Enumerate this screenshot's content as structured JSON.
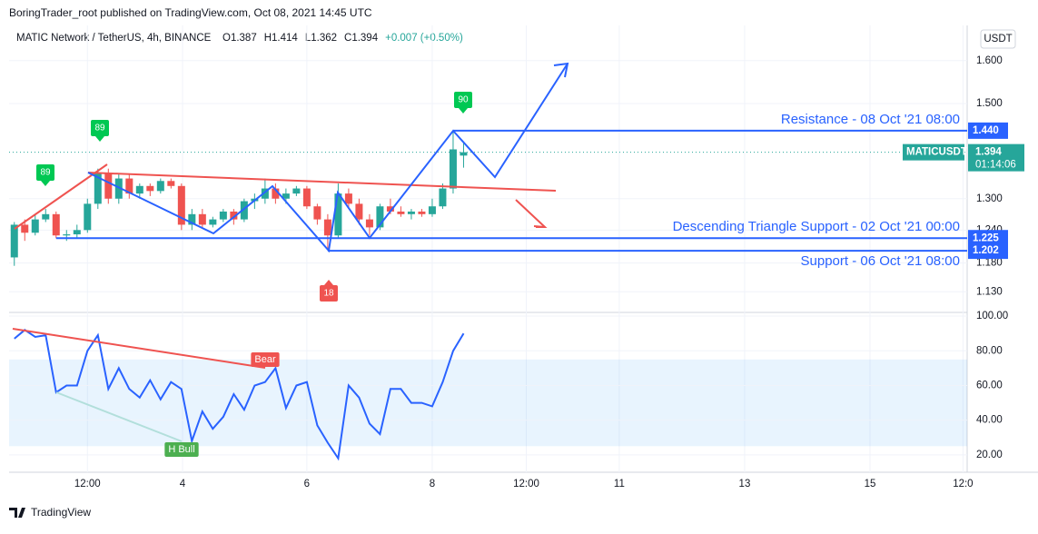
{
  "header": {
    "byline": "BoringTrader_root published on TradingView.com, Oct 08, 2021 14:45 UTC",
    "symbol": "MATIC Network / TetherUS, 4h, BINANCE",
    "ohlc": [
      "O1.387",
      "H1.414",
      "L1.362",
      "C1.394",
      "+0.007 (+0.50%)"
    ],
    "currency": "USDT",
    "ticker": "MATICUSDT",
    "last_price": "1.394",
    "countdown": "01:14:06"
  },
  "footer": {
    "brand": "TradingView"
  },
  "chart_data": [
    {
      "type": "candlestick",
      "log": true,
      "grid": true,
      "up_color": "#26a69a",
      "down_color": "#ef5350",
      "xlim": [
        -0.5,
        91.2
      ],
      "xticks": [
        {
          "value": 7,
          "label": "12:00"
        },
        {
          "value": 16.1,
          "label": "4"
        },
        {
          "value": 28,
          "label": "6"
        },
        {
          "value": 40,
          "label": "8"
        },
        {
          "value": 49,
          "label": "12:00"
        },
        {
          "value": 57.9,
          "label": "11"
        },
        {
          "value": 69.9,
          "label": "13"
        },
        {
          "value": 81.9,
          "label": "15"
        },
        {
          "value": 90.8,
          "label": "12:0"
        }
      ],
      "ylim": [
        1.097,
        1.687
      ],
      "yticks": [
        {
          "value": 1.6,
          "label": "1.600"
        },
        {
          "value": 1.5,
          "label": "1.500"
        },
        {
          "value": 1.3,
          "label": "1.300"
        },
        {
          "value": 1.24,
          "label": "1.240"
        },
        {
          "value": 1.18,
          "label": "1.180"
        },
        {
          "value": 1.13,
          "label": "1.130"
        }
      ],
      "open": [
        1.19,
        1.25,
        1.235,
        1.26,
        1.27,
        1.23,
        1.232,
        1.24,
        1.29,
        1.35,
        1.3,
        1.34,
        1.31,
        1.325,
        1.315,
        1.335,
        1.325,
        1.25,
        1.27,
        1.25,
        1.26,
        1.275,
        1.26,
        1.295,
        1.3,
        1.32,
        1.3,
        1.31,
        1.32,
        1.285,
        1.26,
        1.23,
        1.31,
        1.29,
        1.26,
        1.245,
        1.285,
        1.275,
        1.27,
        1.275,
        1.27,
        1.285,
        1.32,
        1.387
      ],
      "high": [
        1.255,
        1.26,
        1.27,
        1.28,
        1.275,
        1.24,
        1.25,
        1.3,
        1.36,
        1.36,
        1.35,
        1.35,
        1.33,
        1.33,
        1.34,
        1.34,
        1.33,
        1.28,
        1.28,
        1.265,
        1.28,
        1.28,
        1.3,
        1.31,
        1.34,
        1.33,
        1.32,
        1.325,
        1.325,
        1.29,
        1.27,
        1.33,
        1.32,
        1.3,
        1.27,
        1.29,
        1.3,
        1.285,
        1.28,
        1.28,
        1.3,
        1.33,
        1.44,
        1.414
      ],
      "low": [
        1.175,
        1.22,
        1.23,
        1.255,
        1.225,
        1.22,
        1.225,
        1.235,
        1.28,
        1.29,
        1.29,
        1.3,
        1.3,
        1.305,
        1.31,
        1.32,
        1.24,
        1.24,
        1.245,
        1.245,
        1.255,
        1.25,
        1.255,
        1.28,
        1.29,
        1.29,
        1.29,
        1.305,
        1.28,
        1.25,
        1.205,
        1.225,
        1.28,
        1.25,
        1.23,
        1.24,
        1.27,
        1.265,
        1.26,
        1.265,
        1.265,
        1.28,
        1.31,
        1.362
      ],
      "close": [
        1.25,
        1.235,
        1.26,
        1.27,
        1.23,
        1.232,
        1.24,
        1.29,
        1.35,
        1.3,
        1.34,
        1.31,
        1.325,
        1.315,
        1.335,
        1.325,
        1.25,
        1.27,
        1.25,
        1.26,
        1.275,
        1.26,
        1.295,
        1.3,
        1.32,
        1.3,
        1.31,
        1.32,
        1.285,
        1.26,
        1.23,
        1.31,
        1.29,
        1.26,
        1.245,
        1.285,
        1.275,
        1.27,
        1.275,
        1.27,
        1.285,
        1.32,
        1.4,
        1.394
      ],
      "price_lines": [
        {
          "value": 1.44,
          "label": "1.440",
          "text": "Resistance - 08 Oct '21 08:00",
          "start": 42
        },
        {
          "value": 1.225,
          "label": "1.225",
          "text": "Descending Triangle Support - 02 Oct '21 00:00",
          "start": 4
        },
        {
          "value": 1.202,
          "label": "1.202",
          "text": "Support - 06 Oct '21 08:00",
          "start": 30
        }
      ],
      "markers": [
        89,
        89,
        90,
        18
      ]
    },
    {
      "type": "line",
      "color": "#2962ff",
      "band": [
        25,
        75
      ],
      "values": [
        87,
        92,
        88,
        89,
        56,
        60,
        60,
        80,
        89,
        58,
        70,
        58,
        53,
        63,
        52,
        62,
        58,
        28,
        45,
        35,
        42,
        55,
        46,
        60,
        62,
        70,
        47,
        60,
        62,
        37,
        27,
        18,
        60,
        53,
        38,
        32,
        58,
        58,
        50,
        50,
        48,
        62,
        80,
        90
      ],
      "ylim": [
        10,
        101.6
      ],
      "yticks": [
        {
          "value": 100,
          "label": "100.00"
        },
        {
          "value": 80,
          "label": "80.00"
        },
        {
          "value": 60,
          "label": "60.00"
        },
        {
          "value": 40,
          "label": "40.00"
        },
        {
          "value": 20,
          "label": "20.00"
        }
      ],
      "annotations": [
        "Bear",
        "H Bull"
      ]
    }
  ]
}
